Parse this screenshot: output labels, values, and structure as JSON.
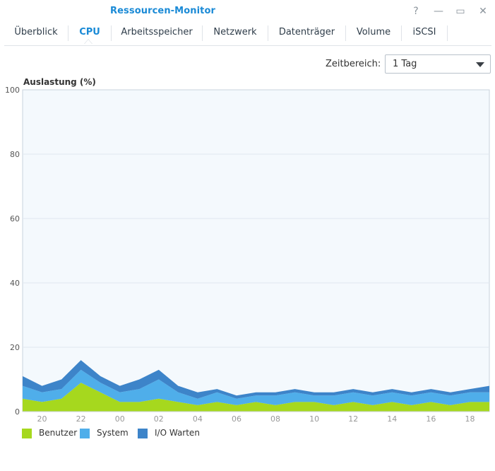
{
  "window": {
    "title": "Ressourcen-Monitor",
    "buttons": {
      "help": "?",
      "minimize": "—",
      "maximize": "▭",
      "close": "✕"
    }
  },
  "tabs": [
    {
      "label": "Überblick",
      "active": false
    },
    {
      "label": "CPU",
      "active": true
    },
    {
      "label": "Arbeitsspeicher",
      "active": false
    },
    {
      "label": "Netzwerk",
      "active": false
    },
    {
      "label": "Datenträger",
      "active": false
    },
    {
      "label": "Volume",
      "active": false
    },
    {
      "label": "iSCSI",
      "active": false
    }
  ],
  "time_range": {
    "label": "Zeitbereich:",
    "value": "1 Tag"
  },
  "colors": {
    "accent": "#1a8ad6",
    "user": "#a6d81e",
    "system": "#4faeea",
    "io_wait": "#3d84c9",
    "plot_bg": "#f4f9fd",
    "grid": "#dfe6ee"
  },
  "chart_data": {
    "type": "area",
    "stacked": true,
    "title": "Auslastung (%)",
    "ylim": [
      0,
      100
    ],
    "yticks": [
      0,
      20,
      40,
      60,
      80,
      100
    ],
    "x": [
      "19",
      "20",
      "21",
      "22",
      "23",
      "00",
      "01",
      "02",
      "03",
      "04",
      "05",
      "06",
      "07",
      "08",
      "09",
      "10",
      "11",
      "12",
      "13",
      "14",
      "15",
      "16",
      "17",
      "18",
      "19"
    ],
    "xtick_labels": [
      "20",
      "22",
      "00",
      "02",
      "04",
      "06",
      "08",
      "10",
      "12",
      "14",
      "16",
      "18"
    ],
    "grid": true,
    "legend_position": "bottom-left",
    "series": [
      {
        "name": "Benutzer",
        "color": "#a6d81e",
        "values": [
          4,
          3,
          4,
          9,
          6,
          3,
          3,
          4,
          3,
          2,
          3,
          2,
          3,
          2,
          3,
          3,
          2,
          3,
          2,
          3,
          2,
          3,
          2,
          3,
          3
        ]
      },
      {
        "name": "System",
        "color": "#4faeea",
        "values": [
          4,
          3,
          3,
          4,
          3,
          3,
          4,
          6,
          3,
          2,
          3,
          2,
          2,
          3,
          3,
          2,
          3,
          3,
          3,
          3,
          3,
          3,
          3,
          3,
          3
        ]
      },
      {
        "name": "I/O Warten",
        "color": "#3d84c9",
        "values": [
          3,
          2,
          3,
          3,
          2,
          2,
          3,
          3,
          2,
          2,
          1,
          1,
          1,
          1,
          1,
          1,
          1,
          1,
          1,
          1,
          1,
          1,
          1,
          1,
          2
        ]
      }
    ]
  }
}
